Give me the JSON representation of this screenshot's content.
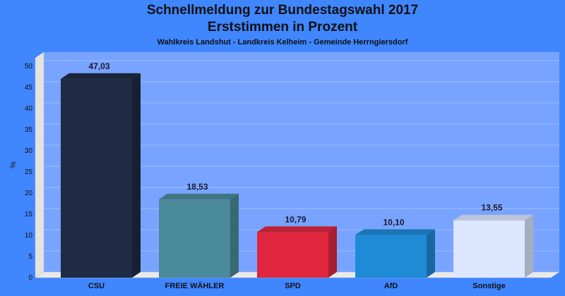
{
  "header": {
    "title": "Schnellmeldung zur Bundestagswahl 2017",
    "subtitle": "Erststimmen in Prozent",
    "caption": "Wahlkreis Landshut - Landkreis Kelheim - Gemeinde Herrngiersdorf"
  },
  "chart_data": {
    "type": "bar",
    "title": "Schnellmeldung zur Bundestagswahl 2017",
    "subtitle": "Erststimmen in Prozent",
    "xlabel": "",
    "ylabel": "%",
    "ylim": [
      0,
      52
    ],
    "yticks": [
      0,
      5,
      10,
      15,
      20,
      25,
      30,
      35,
      40,
      45,
      50
    ],
    "grid": true,
    "categories": [
      "CSU",
      "FREIE WÄHLER",
      "SPD",
      "AfD",
      "Sonstige"
    ],
    "values": [
      47.03,
      18.53,
      10.79,
      10.1,
      13.55
    ],
    "labels": [
      "47,03",
      "18,53",
      "10,79",
      "10,10",
      "13,55"
    ],
    "colors": {
      "CSU": "#1f2a44",
      "FREIE WÄHLER": "#4a8a9a",
      "SPD": "#e0263e",
      "AfD": "#1f8ad6",
      "Sonstige": "#dde6ff"
    }
  }
}
